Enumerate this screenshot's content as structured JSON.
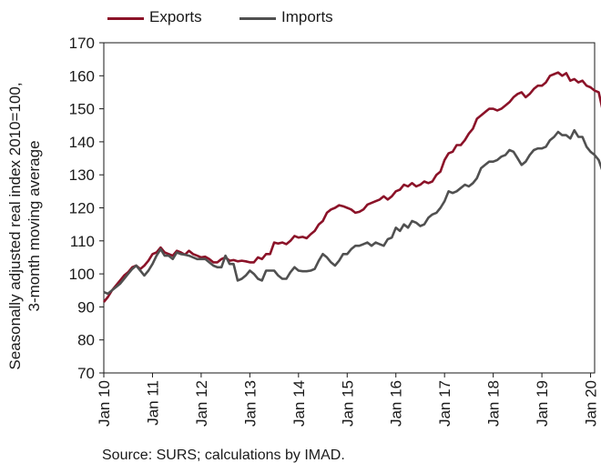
{
  "chart_data": {
    "type": "line",
    "y_label_lines": [
      "Seasonally adjusted real index 2010=100,",
      "3-month moving average"
    ],
    "ylim": [
      70,
      170
    ],
    "y_ticks": [
      70,
      80,
      90,
      100,
      110,
      120,
      130,
      140,
      150,
      160,
      170
    ],
    "x_ticks": [
      "Jan 10",
      "Jan 11",
      "Jan 12",
      "Jan 13",
      "Jan 14",
      "Jan 15",
      "Jan 16",
      "Jan 17",
      "Jan 18",
      "Jan 19",
      "Jan 20"
    ],
    "x_tick_months": [
      0,
      12,
      24,
      36,
      48,
      60,
      72,
      84,
      96,
      108,
      120
    ],
    "x_range_months": [
      0,
      121
    ],
    "grid": false,
    "legend_position": "top-left",
    "series": [
      {
        "name": "Exports",
        "color": "#8b1228",
        "points": [
          [
            0,
            91.5
          ],
          [
            1,
            93
          ],
          [
            2,
            95
          ],
          [
            3,
            96.5
          ],
          [
            4,
            98
          ],
          [
            5,
            99.5
          ],
          [
            6,
            100.5
          ],
          [
            7,
            102
          ],
          [
            8,
            102.5
          ],
          [
            9,
            101.5
          ],
          [
            10,
            102.5
          ],
          [
            11,
            104
          ],
          [
            12,
            106
          ],
          [
            13,
            106.5
          ],
          [
            14,
            108
          ],
          [
            15,
            106.5
          ],
          [
            16,
            106
          ],
          [
            17,
            105.5
          ],
          [
            18,
            107
          ],
          [
            19,
            106.5
          ],
          [
            20,
            105.8
          ],
          [
            21,
            107
          ],
          [
            22,
            106
          ],
          [
            23,
            105.5
          ],
          [
            24,
            105
          ],
          [
            25,
            105.2
          ],
          [
            26,
            104.5
          ],
          [
            27,
            103.5
          ],
          [
            28,
            103.5
          ],
          [
            29,
            104.5
          ],
          [
            30,
            105
          ],
          [
            31,
            104
          ],
          [
            32,
            104.2
          ],
          [
            33,
            103.8
          ],
          [
            34,
            104
          ],
          [
            35,
            103.8
          ],
          [
            36,
            103.5
          ],
          [
            37,
            103.5
          ],
          [
            38,
            105
          ],
          [
            39,
            104.5
          ],
          [
            40,
            106
          ],
          [
            41,
            106
          ],
          [
            42,
            109.5
          ],
          [
            43,
            109.2
          ],
          [
            44,
            109.5
          ],
          [
            45,
            109
          ],
          [
            46,
            110
          ],
          [
            47,
            111.5
          ],
          [
            48,
            111
          ],
          [
            49,
            111.2
          ],
          [
            50,
            110.8
          ],
          [
            51,
            112
          ],
          [
            52,
            113
          ],
          [
            53,
            115
          ],
          [
            54,
            116
          ],
          [
            55,
            118.5
          ],
          [
            56,
            119.5
          ],
          [
            57,
            120
          ],
          [
            58,
            120.8
          ],
          [
            59,
            120.5
          ],
          [
            60,
            120
          ],
          [
            61,
            119.5
          ],
          [
            62,
            118.5
          ],
          [
            63,
            118.8
          ],
          [
            64,
            119.5
          ],
          [
            65,
            121
          ],
          [
            66,
            121.5
          ],
          [
            67,
            122
          ],
          [
            68,
            122.5
          ],
          [
            69,
            123.5
          ],
          [
            70,
            122.5
          ],
          [
            71,
            123.5
          ],
          [
            72,
            125
          ],
          [
            73,
            125.5
          ],
          [
            74,
            127
          ],
          [
            75,
            126.5
          ],
          [
            76,
            127.5
          ],
          [
            77,
            126.5
          ],
          [
            78,
            127
          ],
          [
            79,
            128
          ],
          [
            80,
            127.5
          ],
          [
            81,
            128
          ],
          [
            82,
            130
          ],
          [
            83,
            131
          ],
          [
            84,
            134.5
          ],
          [
            85,
            136.5
          ],
          [
            86,
            137
          ],
          [
            87,
            139
          ],
          [
            88,
            139
          ],
          [
            89,
            140.5
          ],
          [
            90,
            142.5
          ],
          [
            91,
            144
          ],
          [
            92,
            147
          ],
          [
            93,
            148
          ],
          [
            94,
            149
          ],
          [
            95,
            150
          ],
          [
            96,
            150
          ],
          [
            97,
            149.5
          ],
          [
            98,
            150
          ],
          [
            99,
            151
          ],
          [
            100,
            152
          ],
          [
            101,
            153.5
          ],
          [
            102,
            154.5
          ],
          [
            103,
            155
          ],
          [
            104,
            153.5
          ],
          [
            105,
            154.5
          ],
          [
            106,
            156
          ],
          [
            107,
            157
          ],
          [
            108,
            157
          ],
          [
            109,
            158
          ],
          [
            110,
            160
          ],
          [
            111,
            160.5
          ],
          [
            112,
            161
          ],
          [
            113,
            160
          ],
          [
            114,
            160.8
          ],
          [
            115,
            158.5
          ],
          [
            116,
            159
          ],
          [
            117,
            158
          ],
          [
            118,
            158.5
          ],
          [
            119,
            157
          ],
          [
            120,
            156.5
          ],
          [
            121,
            155.5
          ],
          [
            122,
            155
          ],
          [
            123,
            149.5
          ]
        ]
      },
      {
        "name": "Imports",
        "color": "#505050",
        "points": [
          [
            0,
            94.5
          ],
          [
            1,
            94
          ],
          [
            2,
            95
          ],
          [
            3,
            96
          ],
          [
            4,
            97
          ],
          [
            5,
            98.5
          ],
          [
            6,
            100
          ],
          [
            7,
            101.5
          ],
          [
            8,
            102.5
          ],
          [
            9,
            101
          ],
          [
            10,
            99.5
          ],
          [
            11,
            101
          ],
          [
            12,
            103
          ],
          [
            13,
            105.5
          ],
          [
            14,
            107.5
          ],
          [
            15,
            105.5
          ],
          [
            16,
            105.5
          ],
          [
            17,
            104.5
          ],
          [
            18,
            106.5
          ],
          [
            19,
            106
          ],
          [
            20,
            105.8
          ],
          [
            21,
            105.5
          ],
          [
            22,
            105
          ],
          [
            23,
            104.5
          ],
          [
            24,
            104.5
          ],
          [
            25,
            104.5
          ],
          [
            26,
            103.5
          ],
          [
            27,
            102.5
          ],
          [
            28,
            102
          ],
          [
            29,
            102
          ],
          [
            30,
            105.5
          ],
          [
            31,
            103
          ],
          [
            32,
            103
          ],
          [
            33,
            98
          ],
          [
            34,
            98.5
          ],
          [
            35,
            99.5
          ],
          [
            36,
            101
          ],
          [
            37,
            100
          ],
          [
            38,
            98.5
          ],
          [
            39,
            98
          ],
          [
            40,
            101
          ],
          [
            41,
            101
          ],
          [
            42,
            101
          ],
          [
            43,
            99.5
          ],
          [
            44,
            98.5
          ],
          [
            45,
            98.5
          ],
          [
            46,
            100.5
          ],
          [
            47,
            102
          ],
          [
            48,
            101
          ],
          [
            49,
            100.8
          ],
          [
            50,
            100.8
          ],
          [
            51,
            101
          ],
          [
            52,
            101.5
          ],
          [
            53,
            104
          ],
          [
            54,
            106
          ],
          [
            55,
            105
          ],
          [
            56,
            103.5
          ],
          [
            57,
            102.5
          ],
          [
            58,
            104
          ],
          [
            59,
            106
          ],
          [
            60,
            106
          ],
          [
            61,
            107.5
          ],
          [
            62,
            108.5
          ],
          [
            63,
            108.5
          ],
          [
            64,
            109
          ],
          [
            65,
            109.5
          ],
          [
            66,
            108.5
          ],
          [
            67,
            109.5
          ],
          [
            68,
            109
          ],
          [
            69,
            108.5
          ],
          [
            70,
            110.5
          ],
          [
            71,
            111
          ],
          [
            72,
            114
          ],
          [
            73,
            113
          ],
          [
            74,
            115
          ],
          [
            75,
            114
          ],
          [
            76,
            116
          ],
          [
            77,
            115.5
          ],
          [
            78,
            114.5
          ],
          [
            79,
            115
          ],
          [
            80,
            117
          ],
          [
            81,
            118
          ],
          [
            82,
            118.5
          ],
          [
            83,
            120
          ],
          [
            84,
            122
          ],
          [
            85,
            125
          ],
          [
            86,
            124.5
          ],
          [
            87,
            125
          ],
          [
            88,
            126
          ],
          [
            89,
            127
          ],
          [
            90,
            126.5
          ],
          [
            91,
            127.5
          ],
          [
            92,
            129
          ],
          [
            93,
            132
          ],
          [
            94,
            133
          ],
          [
            95,
            134
          ],
          [
            96,
            134
          ],
          [
            97,
            134.5
          ],
          [
            98,
            135.5
          ],
          [
            99,
            136
          ],
          [
            100,
            137.5
          ],
          [
            101,
            137
          ],
          [
            102,
            135
          ],
          [
            103,
            133
          ],
          [
            104,
            134
          ],
          [
            105,
            136
          ],
          [
            106,
            137.5
          ],
          [
            107,
            138
          ],
          [
            108,
            138
          ],
          [
            109,
            138.5
          ],
          [
            110,
            140.5
          ],
          [
            111,
            141.5
          ],
          [
            112,
            143
          ],
          [
            113,
            142
          ],
          [
            114,
            142
          ],
          [
            115,
            141
          ],
          [
            116,
            143.5
          ],
          [
            117,
            141.5
          ],
          [
            118,
            141.5
          ],
          [
            119,
            138.5
          ],
          [
            120,
            137
          ],
          [
            121,
            136
          ],
          [
            122,
            134.5
          ],
          [
            123,
            131
          ]
        ]
      }
    ]
  },
  "source_text": "Source: SURS; calculations by IMAD."
}
